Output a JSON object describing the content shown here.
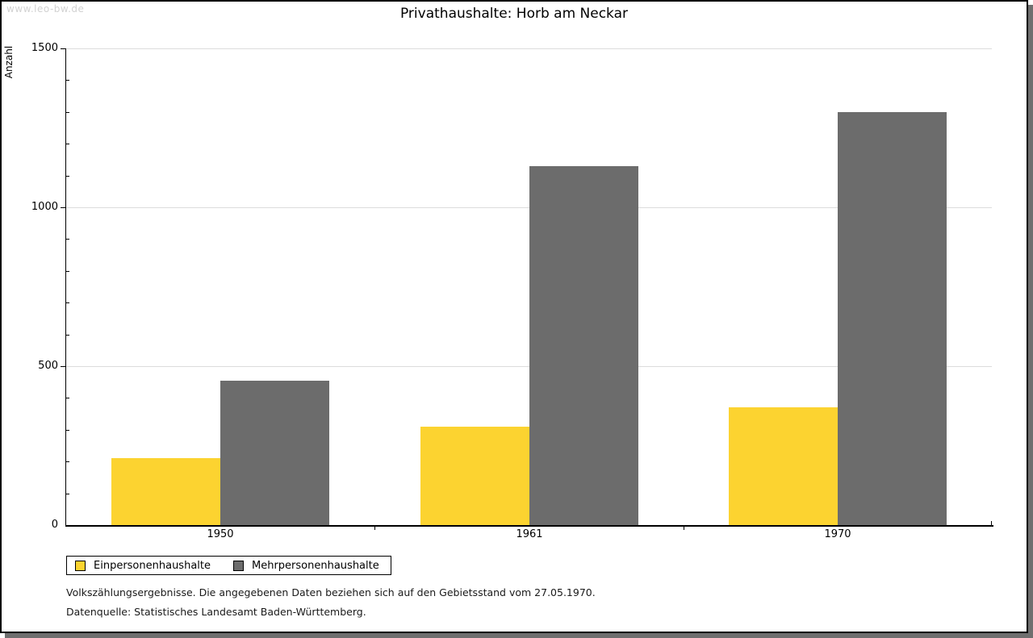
{
  "watermark": "www.leo-bw.de",
  "title": "Privathaushalte: Horb am Neckar",
  "y_axis_label": "Anzahl",
  "colors": {
    "series1": "#FCD330",
    "series2": "#6C6C6C",
    "gridline": "#DCDCDC",
    "axis": "#000000",
    "watermark": "#D2D2D2",
    "shadow": "#6F6F6F"
  },
  "chart_data": {
    "type": "bar",
    "title": "Privathaushalte: Horb am Neckar",
    "xlabel": "",
    "ylabel": "Anzahl",
    "categories": [
      "1950",
      "1961",
      "1970"
    ],
    "series": [
      {
        "name": "Einpersonenhaushalte",
        "color": "#FCD330",
        "values": [
          210,
          310,
          370
        ]
      },
      {
        "name": "Mehrpersonenhaushalte",
        "color": "#6C6C6C",
        "values": [
          455,
          1130,
          1300
        ]
      }
    ],
    "ylim": [
      0,
      1500
    ],
    "yticks": [
      0,
      500,
      1000,
      1500
    ],
    "minor_tick_interval": 100,
    "grid": true,
    "legend_position": "bottom-left"
  },
  "legend": {
    "items": [
      {
        "label": "Einpersonenhaushalte",
        "color": "#FCD330"
      },
      {
        "label": "Mehrpersonenhaushalte",
        "color": "#6C6C6C"
      }
    ]
  },
  "footnotes": {
    "line1": "Volkszählungsergebnisse. Die angegebenen Daten beziehen sich auf den Gebietsstand vom 27.05.1970.",
    "line2": "Datenquelle: Statistisches Landesamt Baden-Württemberg."
  }
}
